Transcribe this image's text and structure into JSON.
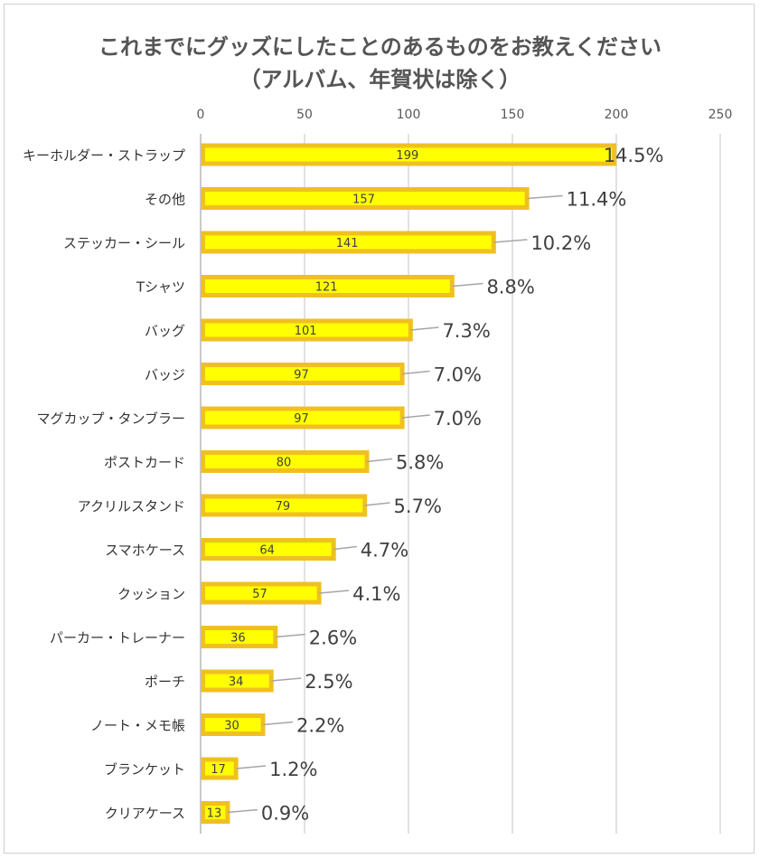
{
  "chart_data": {
    "type": "bar",
    "orientation": "horizontal",
    "title": "これまでにグッズにしたことのあるものをお教えください",
    "subtitle": "（アルバム、年賀状は除く）",
    "xlim": [
      0,
      250
    ],
    "xticks": [
      0,
      50,
      100,
      150,
      200,
      250
    ],
    "xtick_position": "top",
    "grid": true,
    "categories": [
      "キーホルダー・ストラップ",
      "その他",
      "ステッカー・シール",
      "Tシャツ",
      "バッグ",
      "バッジ",
      "マグカップ・タンブラー",
      "ポストカード",
      "アクリルスタンド",
      "スマホケース",
      "クッション",
      "パーカー・トレーナー",
      "ポーチ",
      "ノート・メモ帳",
      "ブランケット",
      "クリアケース"
    ],
    "values": [
      199,
      157,
      141,
      121,
      101,
      97,
      97,
      80,
      79,
      64,
      57,
      36,
      34,
      30,
      17,
      13
    ],
    "percent_labels": [
      "14.5%",
      "11.4%",
      "10.2%",
      "8.8%",
      "7.3%",
      "7.0%",
      "7.0%",
      "5.8%",
      "5.7%",
      "4.7%",
      "4.1%",
      "2.6%",
      "2.5%",
      "2.2%",
      "1.2%",
      "0.9%"
    ],
    "colors": {
      "bar_fill": "#ffff00",
      "bar_border": "#f0c020",
      "grid": "#d9d9d9",
      "leader": "#a6a6a6"
    }
  }
}
